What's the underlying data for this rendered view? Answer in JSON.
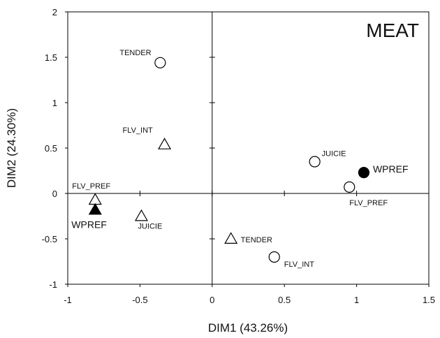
{
  "chart_data": {
    "type": "scatter",
    "title": "MEAT",
    "xlabel": "DIM1 (43.26%)",
    "ylabel": "DIM2 (24.30%)",
    "xlim": [
      -1,
      1.5
    ],
    "ylim": [
      -1,
      2
    ],
    "xticks": [
      "-1",
      "-0.5",
      "0",
      "0.5",
      "1",
      "1.5"
    ],
    "yticks": [
      "-1",
      "-0.5",
      "0",
      "0.5",
      "1",
      "1.5",
      "2"
    ],
    "grid": false,
    "points": [
      {
        "label": "TENDER",
        "x": -0.36,
        "y": 1.44,
        "marker": "circle-open"
      },
      {
        "label": "FLV_INT",
        "x": -0.33,
        "y": 0.54,
        "marker": "triangle-open"
      },
      {
        "label": "FLV_PREF",
        "x": -0.81,
        "y": -0.07,
        "marker": "triangle-open"
      },
      {
        "label": "WPREF",
        "x": -0.81,
        "y": -0.18,
        "marker": "triangle-filled"
      },
      {
        "label": "JUICIE",
        "x": -0.49,
        "y": -0.25,
        "marker": "triangle-open"
      },
      {
        "label": "JUICIE",
        "x": 0.71,
        "y": 0.35,
        "marker": "circle-open"
      },
      {
        "label": "WPREF",
        "x": 1.05,
        "y": 0.23,
        "marker": "circle-filled"
      },
      {
        "label": "FLV_PREF",
        "x": 0.95,
        "y": 0.07,
        "marker": "circle-open"
      },
      {
        "label": "TENDER",
        "x": 0.13,
        "y": -0.5,
        "marker": "triangle-open"
      },
      {
        "label": "FLV_INT",
        "x": 0.43,
        "y": -0.7,
        "marker": "circle-open"
      }
    ]
  }
}
